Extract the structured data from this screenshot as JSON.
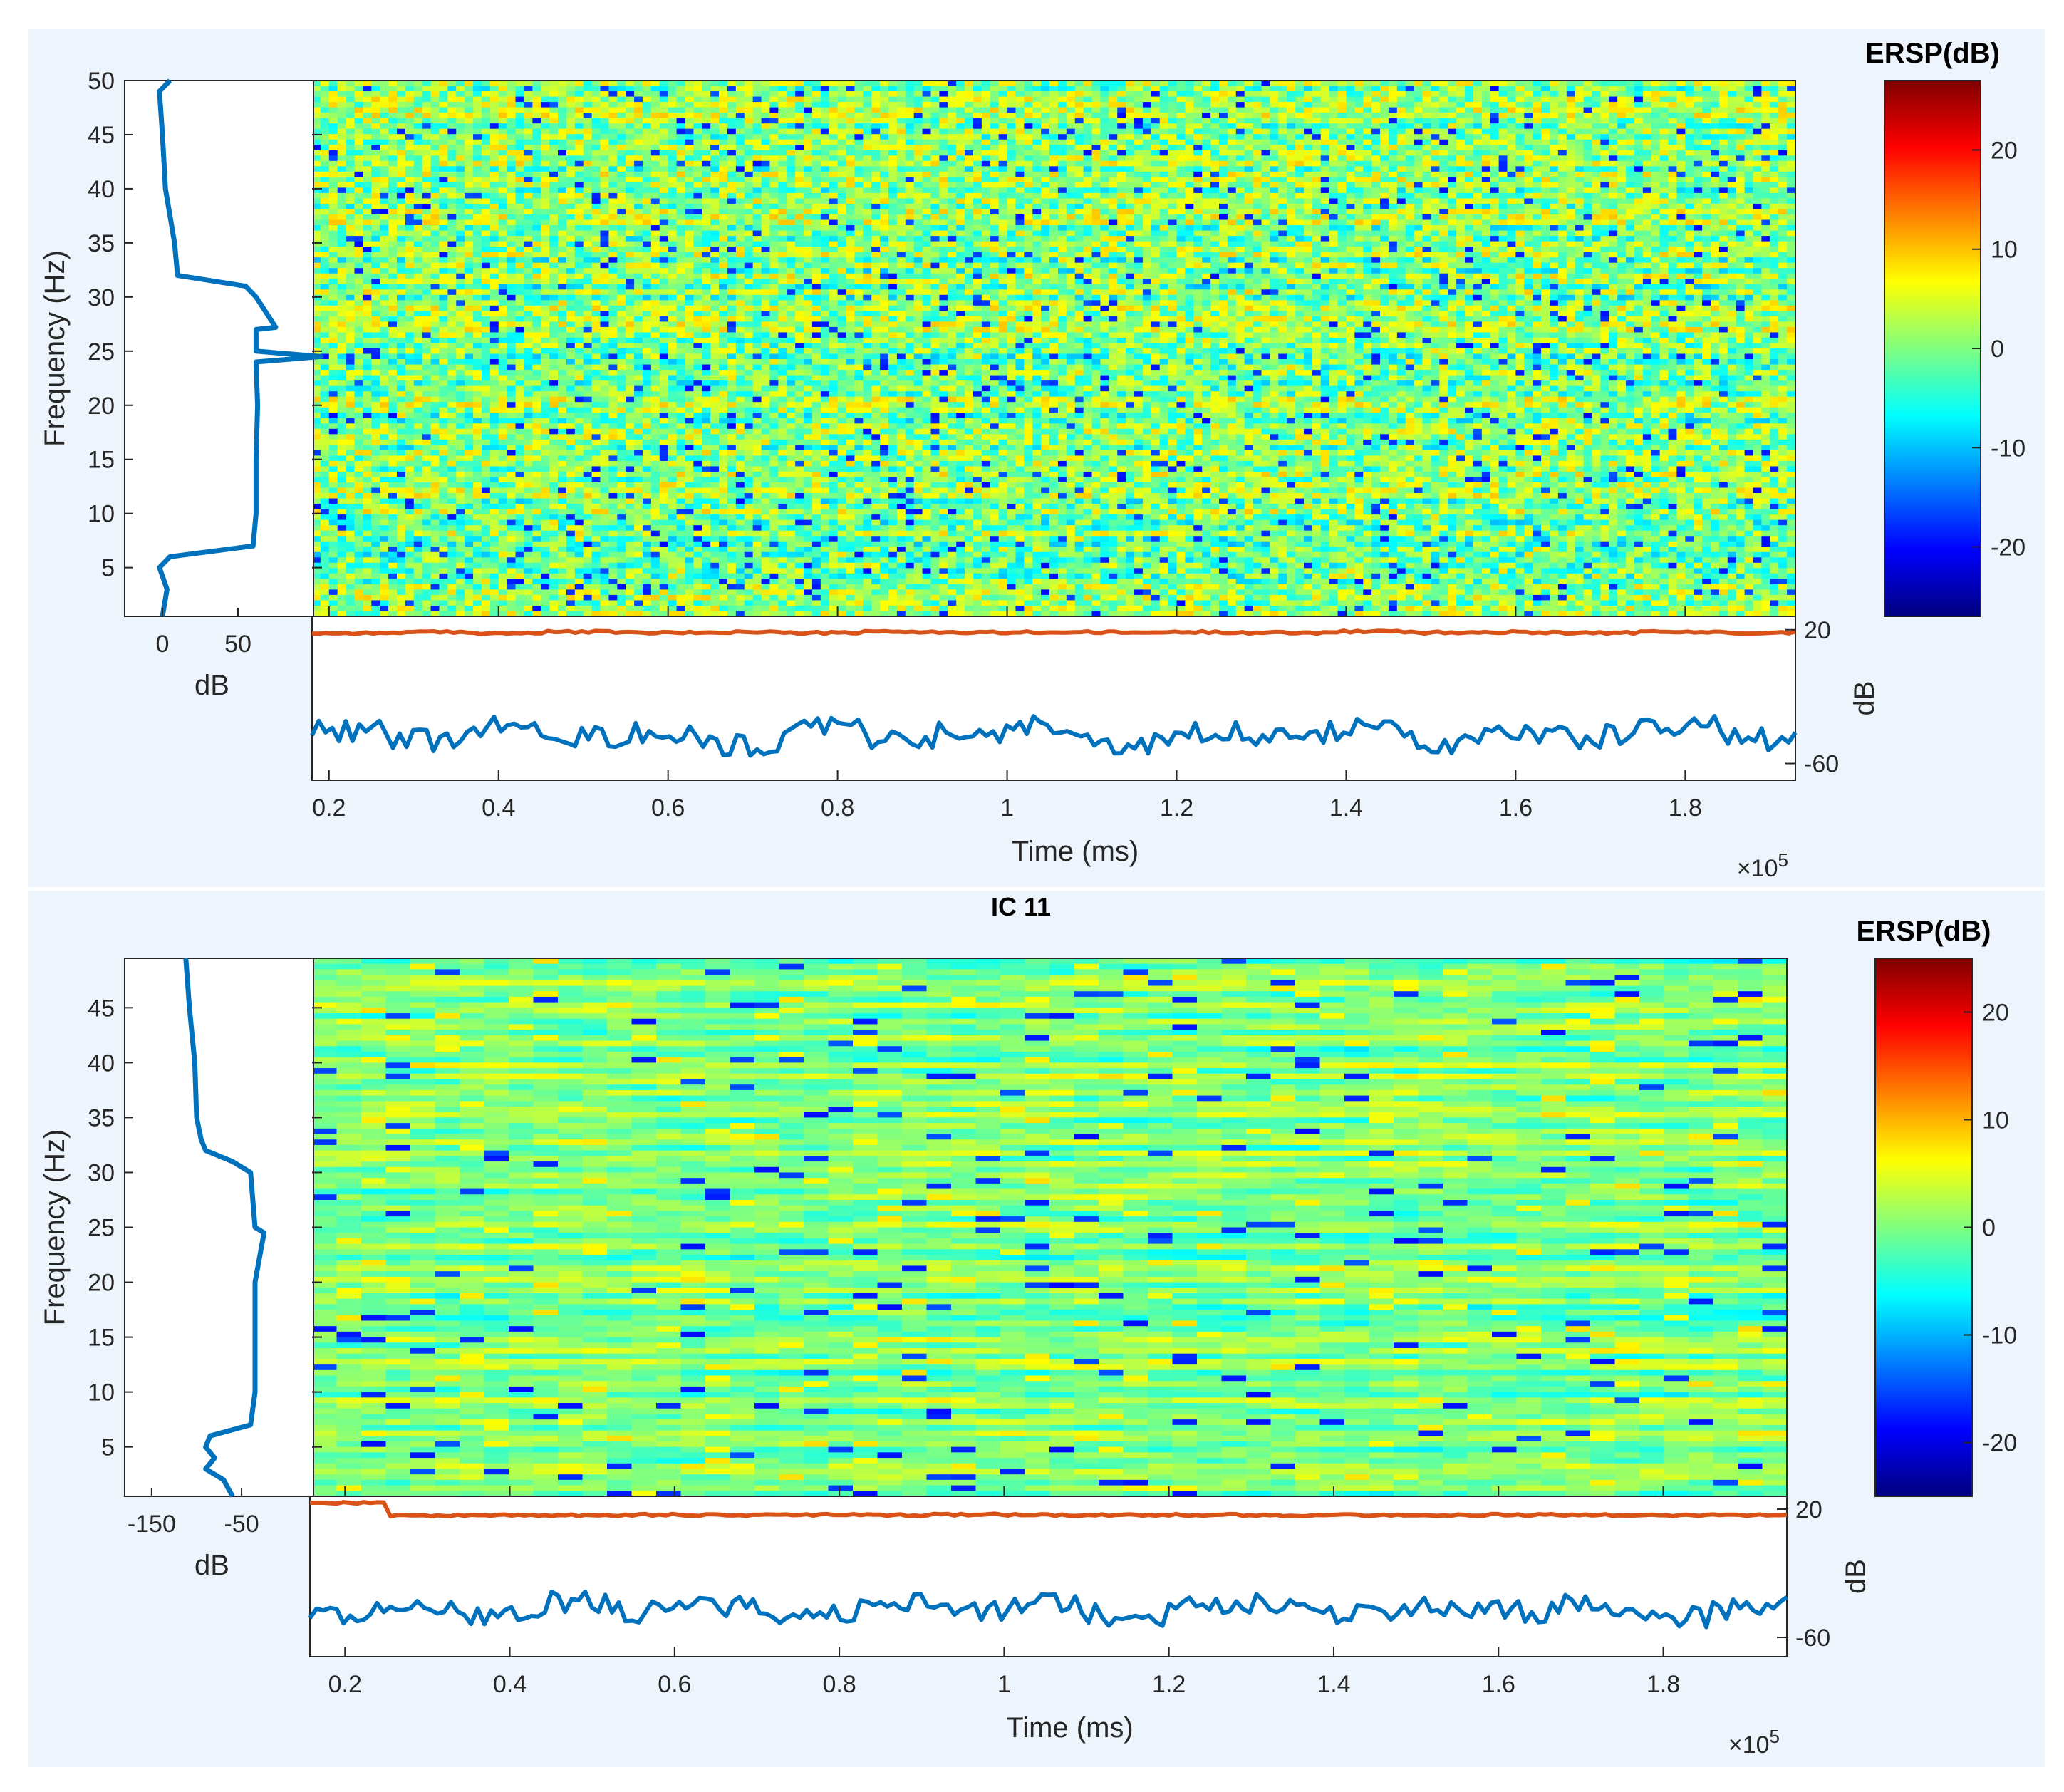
{
  "chart_data": [
    {
      "type": "heatmap",
      "title": "",
      "xlabel": "Time (ms)",
      "ylabel": "Frequency (Hz)",
      "x_exponent": "×10^5",
      "xlim": [
        0.18,
        1.93
      ],
      "ylim": [
        0.5,
        50
      ],
      "xticks": [
        "0.2",
        "0.4",
        "0.6",
        "0.8",
        "1",
        "1.2",
        "1.4",
        "1.6",
        "1.8"
      ],
      "yticks": [
        "5",
        "10",
        "15",
        "20",
        "25",
        "30",
        "35",
        "40",
        "45",
        "50"
      ],
      "colorbar": {
        "title": "ERSP(dB)",
        "range": [
          -27,
          27
        ],
        "ticks": [
          "20",
          "10",
          "0",
          "-10",
          "-20"
        ]
      },
      "spectrum_panel": {
        "xlabel": "dB",
        "xticks": [
          "0",
          "50"
        ],
        "xlim": [
          -25,
          100
        ],
        "frequency": [
          0.5,
          3,
          5,
          6,
          7,
          10,
          15,
          20,
          24,
          24.5,
          25,
          27,
          27.2,
          30,
          31,
          32,
          35,
          40,
          45,
          49,
          50
        ],
        "power": [
          0,
          3,
          -2,
          5,
          60,
          62,
          62,
          63,
          62,
          105,
          62,
          62,
          75,
          62,
          55,
          10,
          8,
          2,
          0,
          -2,
          5
        ]
      },
      "time_panel": {
        "ylabel": "dB",
        "yticks": [
          "20",
          "-60"
        ],
        "ylim": [
          -70,
          28
        ],
        "series": [
          {
            "color": "#d95319",
            "values": [
              18,
              18.5,
              18,
              18.7,
              18.2,
              18.6,
              18.1,
              18.8,
              18.3,
              18.5,
              18.4,
              18.6,
              18.2,
              18.9,
              18.3,
              18.5,
              18.2,
              18.6,
              18.3,
              18.4
            ]
          },
          {
            "color": "#0072bd",
            "values": [
              -40,
              -46,
              -38,
              -44,
              -41,
              -49,
              -39,
              -45,
              -42,
              -38,
              -47,
              -40,
              -43,
              -39,
              -48,
              -41,
              -44,
              -38,
              -46,
              -42
            ]
          }
        ]
      }
    },
    {
      "type": "heatmap",
      "title": "IC 11",
      "xlabel": "Time (ms)",
      "ylabel": "Frequency (Hz)",
      "x_exponent": "×10^5",
      "xlim": [
        0.16,
        1.95
      ],
      "ylim": [
        0.5,
        49.5
      ],
      "xticks": [
        "0.2",
        "0.4",
        "0.6",
        "0.8",
        "1",
        "1.2",
        "1.4",
        "1.6",
        "1.8"
      ],
      "yticks": [
        "5",
        "10",
        "15",
        "20",
        "25",
        "30",
        "35",
        "40",
        "45"
      ],
      "colorbar": {
        "title": "ERSP(dB)",
        "range": [
          -25,
          25
        ],
        "ticks": [
          "20",
          "10",
          "0",
          "-10",
          "-20"
        ]
      },
      "spectrum_panel": {
        "xlabel": "dB",
        "xticks": [
          "-150",
          "-50"
        ],
        "xlim": [
          -180,
          30
        ],
        "frequency": [
          0.5,
          2,
          3,
          4,
          5,
          6,
          7,
          10,
          15,
          20,
          24.5,
          25,
          30,
          31,
          32,
          33,
          35,
          40,
          45,
          49.5
        ],
        "power": [
          -60,
          -70,
          -90,
          -80,
          -90,
          -85,
          -40,
          -35,
          -35,
          -35,
          -25,
          -35,
          -40,
          -60,
          -90,
          -95,
          -100,
          -102,
          -108,
          -112
        ]
      },
      "time_panel": {
        "ylabel": "dB",
        "yticks": [
          "20",
          "-60"
        ],
        "ylim": [
          -72,
          28
        ],
        "series": [
          {
            "color": "#d95319",
            "values": [
              24,
              16,
              16.2,
              16.1,
              16.5,
              16.3,
              16.4,
              16.2,
              16.6,
              16.3,
              16.2,
              16.4,
              16.1,
              16.3,
              16.2,
              16.4,
              16.3,
              16.1,
              16.2,
              16
            ]
          },
          {
            "color": "#0072bd",
            "values": [
              -45,
              -40,
              -46,
              -38,
              -44,
              -41,
              -47,
              -39,
              -43,
              -40,
              -46,
              -42,
              -38,
              -45,
              -41,
              -44,
              -40,
              -47,
              -42,
              -38
            ]
          }
        ]
      }
    }
  ]
}
